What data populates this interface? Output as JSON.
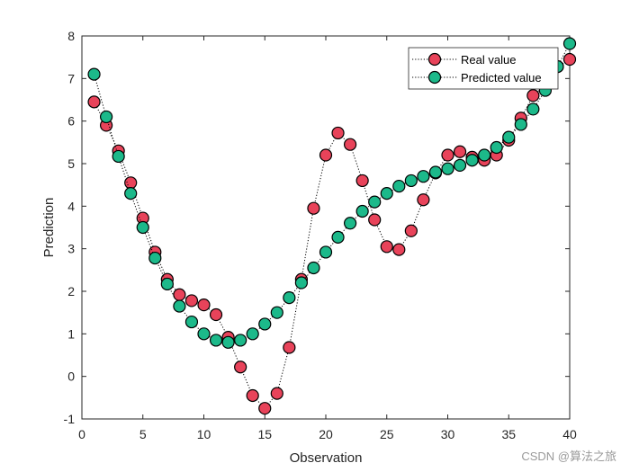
{
  "chart_data": {
    "type": "line",
    "xlabel": "Observation",
    "ylabel": "Prediction",
    "xlim": [
      0,
      40
    ],
    "ylim": [
      -1,
      8
    ],
    "xticks": [
      0,
      5,
      10,
      15,
      20,
      25,
      30,
      35,
      40
    ],
    "yticks": [
      -1,
      0,
      1,
      2,
      3,
      4,
      5,
      6,
      7,
      8
    ],
    "grid": false,
    "legend_position": "top-right",
    "x": [
      1,
      2,
      3,
      4,
      5,
      6,
      7,
      8,
      9,
      10,
      11,
      12,
      13,
      14,
      15,
      16,
      17,
      18,
      19,
      20,
      21,
      22,
      23,
      24,
      25,
      26,
      27,
      28,
      29,
      30,
      31,
      32,
      33,
      34,
      35,
      36,
      37,
      38,
      39,
      40
    ],
    "series": [
      {
        "name": "Real value",
        "color": "#e8435a",
        "values": [
          6.45,
          5.9,
          5.3,
          4.55,
          3.72,
          2.92,
          2.28,
          1.92,
          1.78,
          1.68,
          1.45,
          0.92,
          0.22,
          -0.45,
          -0.75,
          -0.4,
          0.68,
          2.28,
          3.95,
          5.2,
          5.72,
          5.45,
          4.6,
          3.68,
          3.05,
          2.98,
          3.42,
          4.15,
          4.78,
          5.2,
          5.28,
          5.15,
          5.08,
          5.2,
          5.55,
          6.07,
          6.6,
          6.85,
          7.28,
          7.45
        ]
      },
      {
        "name": "Predicted value",
        "color": "#1cb98a",
        "values": [
          7.1,
          6.1,
          5.17,
          4.3,
          3.5,
          2.78,
          2.17,
          1.65,
          1.28,
          1.0,
          0.85,
          0.8,
          0.85,
          1.0,
          1.23,
          1.5,
          1.85,
          2.2,
          2.55,
          2.92,
          3.27,
          3.6,
          3.88,
          4.1,
          4.3,
          4.47,
          4.6,
          4.7,
          4.8,
          4.88,
          4.96,
          5.08,
          5.2,
          5.38,
          5.62,
          5.92,
          6.28,
          6.72,
          7.28,
          7.82
        ]
      }
    ]
  },
  "watermark": "CSDN @算法之旅"
}
